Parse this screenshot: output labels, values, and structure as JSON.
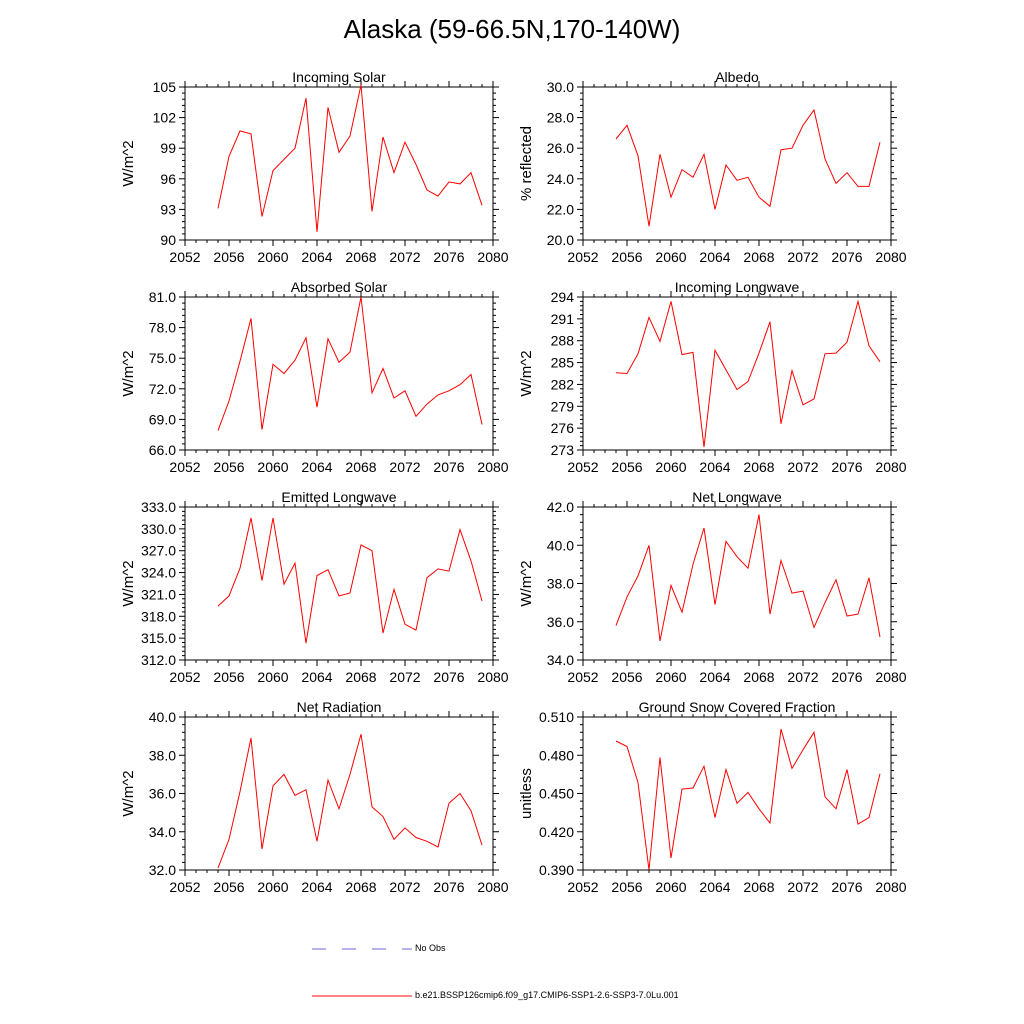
{
  "page": {
    "title": "Alaska (59-66.5N,170-140W)"
  },
  "chart_data": [
    {
      "type": "line",
      "title": "Incoming Solar",
      "ylabel": "W/m^2",
      "xlim": [
        2052,
        2080
      ],
      "ylim": [
        90,
        105
      ],
      "yticks": [
        "90",
        "93",
        "96",
        "99",
        "102",
        "105"
      ],
      "xticks": [
        "2052",
        "2056",
        "2060",
        "2064",
        "2068",
        "2072",
        "2076",
        "2080"
      ],
      "series": [
        {
          "color": "#ff0000",
          "x": [
            2055,
            2056,
            2057,
            2058,
            2059,
            2060,
            2061,
            2062,
            2063,
            2064,
            2065,
            2066,
            2067,
            2068,
            2069,
            2070,
            2071,
            2072,
            2073,
            2074,
            2075,
            2076,
            2077,
            2078,
            2079
          ],
          "y": [
            93.1,
            98.2,
            100.7,
            100.4,
            92.3,
            96.8,
            97.9,
            99.0,
            103.9,
            90.8,
            103.0,
            98.6,
            100.2,
            105.2,
            92.8,
            100.1,
            96.6,
            99.6,
            97.4,
            94.9,
            94.3,
            95.7,
            95.5,
            96.6,
            93.4
          ]
        }
      ]
    },
    {
      "type": "line",
      "title": "Albedo",
      "ylabel": "% reflected",
      "xlim": [
        2052,
        2080
      ],
      "ylim": [
        20,
        30
      ],
      "yticks": [
        "20.0",
        "22.0",
        "24.0",
        "26.0",
        "28.0",
        "30.0"
      ],
      "xticks": [
        "2052",
        "2056",
        "2060",
        "2064",
        "2068",
        "2072",
        "2076",
        "2080"
      ],
      "series": [
        {
          "color": "#ff0000",
          "x": [
            2055,
            2056,
            2057,
            2058,
            2059,
            2060,
            2061,
            2062,
            2063,
            2064,
            2065,
            2066,
            2067,
            2068,
            2069,
            2070,
            2071,
            2072,
            2073,
            2074,
            2075,
            2076,
            2077,
            2078,
            2079
          ],
          "y": [
            26.6,
            27.5,
            25.5,
            20.9,
            25.6,
            22.8,
            24.6,
            24.1,
            25.6,
            22.0,
            24.9,
            23.9,
            24.1,
            22.8,
            22.2,
            25.9,
            26.0,
            27.5,
            28.5,
            25.3,
            23.7,
            24.4,
            23.5,
            23.5,
            26.4
          ]
        }
      ]
    },
    {
      "type": "line",
      "title": "Absorbed Solar",
      "ylabel": "W/m^2",
      "xlim": [
        2052,
        2080
      ],
      "ylim": [
        66,
        81
      ],
      "yticks": [
        "66.0",
        "69.0",
        "72.0",
        "75.0",
        "78.0",
        "81.0"
      ],
      "xticks": [
        "2052",
        "2056",
        "2060",
        "2064",
        "2068",
        "2072",
        "2076",
        "2080"
      ],
      "series": [
        {
          "color": "#ff0000",
          "x": [
            2055,
            2056,
            2057,
            2058,
            2059,
            2060,
            2061,
            2062,
            2063,
            2064,
            2065,
            2066,
            2067,
            2068,
            2069,
            2070,
            2071,
            2072,
            2073,
            2074,
            2075,
            2076,
            2077,
            2078,
            2079
          ],
          "y": [
            67.9,
            70.8,
            74.7,
            78.9,
            68.0,
            74.4,
            73.5,
            74.8,
            77.0,
            70.2,
            76.9,
            74.6,
            75.6,
            81.0,
            71.6,
            74.0,
            71.1,
            71.8,
            69.3,
            70.5,
            71.4,
            71.8,
            72.4,
            73.4,
            68.5
          ]
        }
      ]
    },
    {
      "type": "line",
      "title": "Incoming Longwave",
      "ylabel": "W/m^2",
      "xlim": [
        2052,
        2080
      ],
      "ylim": [
        273,
        294
      ],
      "yticks": [
        "273",
        "276",
        "279",
        "282",
        "285",
        "288",
        "291",
        "294"
      ],
      "xticks": [
        "2052",
        "2056",
        "2060",
        "2064",
        "2068",
        "2072",
        "2076",
        "2080"
      ],
      "series": [
        {
          "color": "#ff0000",
          "x": [
            2055,
            2056,
            2057,
            2058,
            2059,
            2060,
            2061,
            2062,
            2063,
            2064,
            2065,
            2066,
            2067,
            2068,
            2069,
            2070,
            2071,
            2072,
            2073,
            2074,
            2075,
            2076,
            2077,
            2078,
            2079
          ],
          "y": [
            283.6,
            283.5,
            286.2,
            291.2,
            287.9,
            293.4,
            286.1,
            286.4,
            273.4,
            286.7,
            284.0,
            281.3,
            282.4,
            286.3,
            290.6,
            276.6,
            283.9,
            279.2,
            280.0,
            286.2,
            286.3,
            287.8,
            293.4,
            287.3,
            285.1
          ]
        }
      ]
    },
    {
      "type": "line",
      "title": "Emitted Longwave",
      "ylabel": "W/m^2",
      "xlim": [
        2052,
        2080
      ],
      "ylim": [
        312,
        333
      ],
      "yticks": [
        "312.0",
        "315.0",
        "318.0",
        "321.0",
        "324.0",
        "327.0",
        "330.0",
        "333.0"
      ],
      "xticks": [
        "2052",
        "2056",
        "2060",
        "2064",
        "2068",
        "2072",
        "2076",
        "2080"
      ],
      "series": [
        {
          "color": "#ff0000",
          "x": [
            2055,
            2056,
            2057,
            2058,
            2059,
            2060,
            2061,
            2062,
            2063,
            2064,
            2065,
            2066,
            2067,
            2068,
            2069,
            2070,
            2071,
            2072,
            2073,
            2074,
            2075,
            2076,
            2077,
            2078,
            2079
          ],
          "y": [
            319.4,
            320.8,
            324.6,
            331.5,
            322.9,
            331.5,
            322.4,
            325.3,
            314.3,
            323.6,
            324.4,
            320.8,
            321.2,
            327.8,
            327.0,
            315.7,
            321.7,
            316.9,
            316.1,
            323.3,
            324.5,
            324.2,
            329.9,
            325.6,
            320.1
          ]
        }
      ]
    },
    {
      "type": "line",
      "title": "Net Longwave",
      "ylabel": "W/m^2",
      "xlim": [
        2052,
        2080
      ],
      "ylim": [
        34,
        42
      ],
      "yticks": [
        "34.0",
        "36.0",
        "38.0",
        "40.0",
        "42.0"
      ],
      "xticks": [
        "2052",
        "2056",
        "2060",
        "2064",
        "2068",
        "2072",
        "2076",
        "2080"
      ],
      "series": [
        {
          "color": "#ff0000",
          "x": [
            2055,
            2056,
            2057,
            2058,
            2059,
            2060,
            2061,
            2062,
            2063,
            2064,
            2065,
            2066,
            2067,
            2068,
            2069,
            2070,
            2071,
            2072,
            2073,
            2074,
            2075,
            2076,
            2077,
            2078,
            2079
          ],
          "y": [
            35.8,
            37.3,
            38.4,
            40.0,
            35.0,
            37.9,
            36.5,
            39.0,
            40.9,
            36.9,
            40.2,
            39.4,
            38.8,
            41.6,
            36.4,
            39.2,
            37.5,
            37.6,
            35.7,
            37.0,
            38.2,
            36.3,
            36.4,
            38.3,
            35.2
          ]
        }
      ]
    },
    {
      "type": "line",
      "title": "Net Radiation",
      "ylabel": "W/m^2",
      "xlim": [
        2052,
        2080
      ],
      "ylim": [
        32,
        40
      ],
      "yticks": [
        "32.0",
        "34.0",
        "36.0",
        "38.0",
        "40.0"
      ],
      "xticks": [
        "2052",
        "2056",
        "2060",
        "2064",
        "2068",
        "2072",
        "2076",
        "2080"
      ],
      "series": [
        {
          "color": "#ff0000",
          "x": [
            2055,
            2056,
            2057,
            2058,
            2059,
            2060,
            2061,
            2062,
            2063,
            2064,
            2065,
            2066,
            2067,
            2068,
            2069,
            2070,
            2071,
            2072,
            2073,
            2074,
            2075,
            2076,
            2077,
            2078,
            2079
          ],
          "y": [
            32.1,
            33.6,
            36.1,
            38.9,
            33.1,
            36.4,
            37.0,
            35.9,
            36.2,
            33.5,
            36.7,
            35.2,
            37.0,
            39.1,
            35.3,
            34.8,
            33.6,
            34.2,
            33.7,
            33.5,
            33.2,
            35.5,
            36.0,
            35.1,
            33.3
          ]
        }
      ]
    },
    {
      "type": "line",
      "title": "Ground Snow Covered Fraction",
      "ylabel": "unitless",
      "xlim": [
        2052,
        2080
      ],
      "ylim": [
        0.38,
        0.52
      ],
      "yticks": [
        "0.390",
        "0.420",
        "0.450",
        "0.480",
        "0.510"
      ],
      "xticks": [
        "2052",
        "2056",
        "2060",
        "2064",
        "2068",
        "2072",
        "2076",
        "2080"
      ],
      "series": [
        {
          "color": "#ff0000",
          "x": [
            2055,
            2056,
            2057,
            2058,
            2059,
            2060,
            2061,
            2062,
            2063,
            2064,
            2065,
            2066,
            2067,
            2068,
            2069,
            2070,
            2071,
            2072,
            2073,
            2074,
            2075,
            2076,
            2077,
            2078,
            2079
          ],
          "y": [
            0.498,
            0.493,
            0.46,
            0.38,
            0.483,
            0.391,
            0.454,
            0.455,
            0.475,
            0.428,
            0.472,
            0.441,
            0.451,
            0.436,
            0.423,
            0.509,
            0.473,
            0.49,
            0.506,
            0.447,
            0.436,
            0.472,
            0.422,
            0.428,
            0.468
          ]
        }
      ]
    }
  ],
  "legend": {
    "items": [
      {
        "label": "No Obs",
        "color": "#6a6ad8",
        "style": "dashed"
      },
      {
        "label": "b.e21.BSSP126cmip6.f09_g17.CMIP6-SSP1-2.6-SSP3-7.0Lu.001",
        "color": "#ff0000",
        "style": "solid"
      }
    ]
  }
}
